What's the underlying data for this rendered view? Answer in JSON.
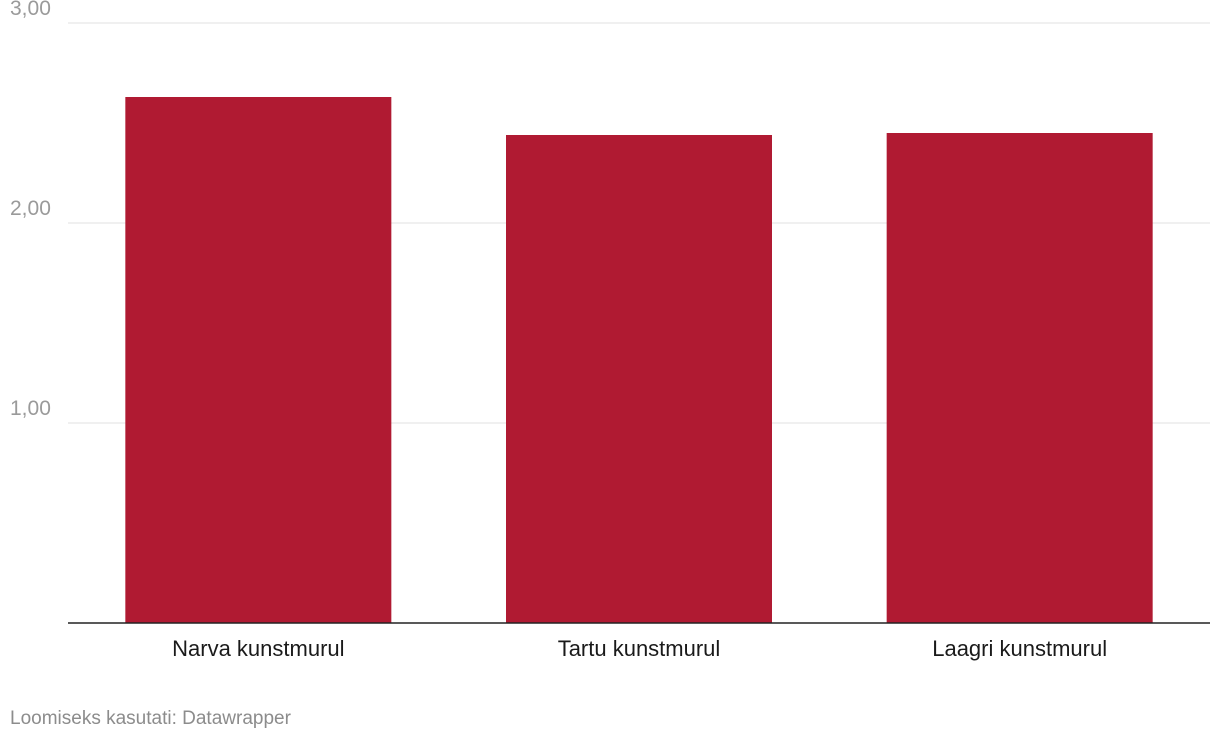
{
  "chart_data": {
    "type": "bar",
    "categories": [
      "Narva kunstmurul",
      "Tartu kunstmurul",
      "Laagri kunstmurul"
    ],
    "values": [
      2.63,
      2.44,
      2.45
    ],
    "ylim": [
      0,
      3
    ],
    "yticks": [
      1,
      2,
      3
    ],
    "ytick_labels": [
      "1,00",
      "2,00",
      "3,00"
    ],
    "grid": true,
    "bar_color": "#b01a32",
    "title": "",
    "xlabel": "",
    "ylabel": ""
  },
  "footer": {
    "credit": "Loomiseks kasutati: Datawrapper"
  }
}
